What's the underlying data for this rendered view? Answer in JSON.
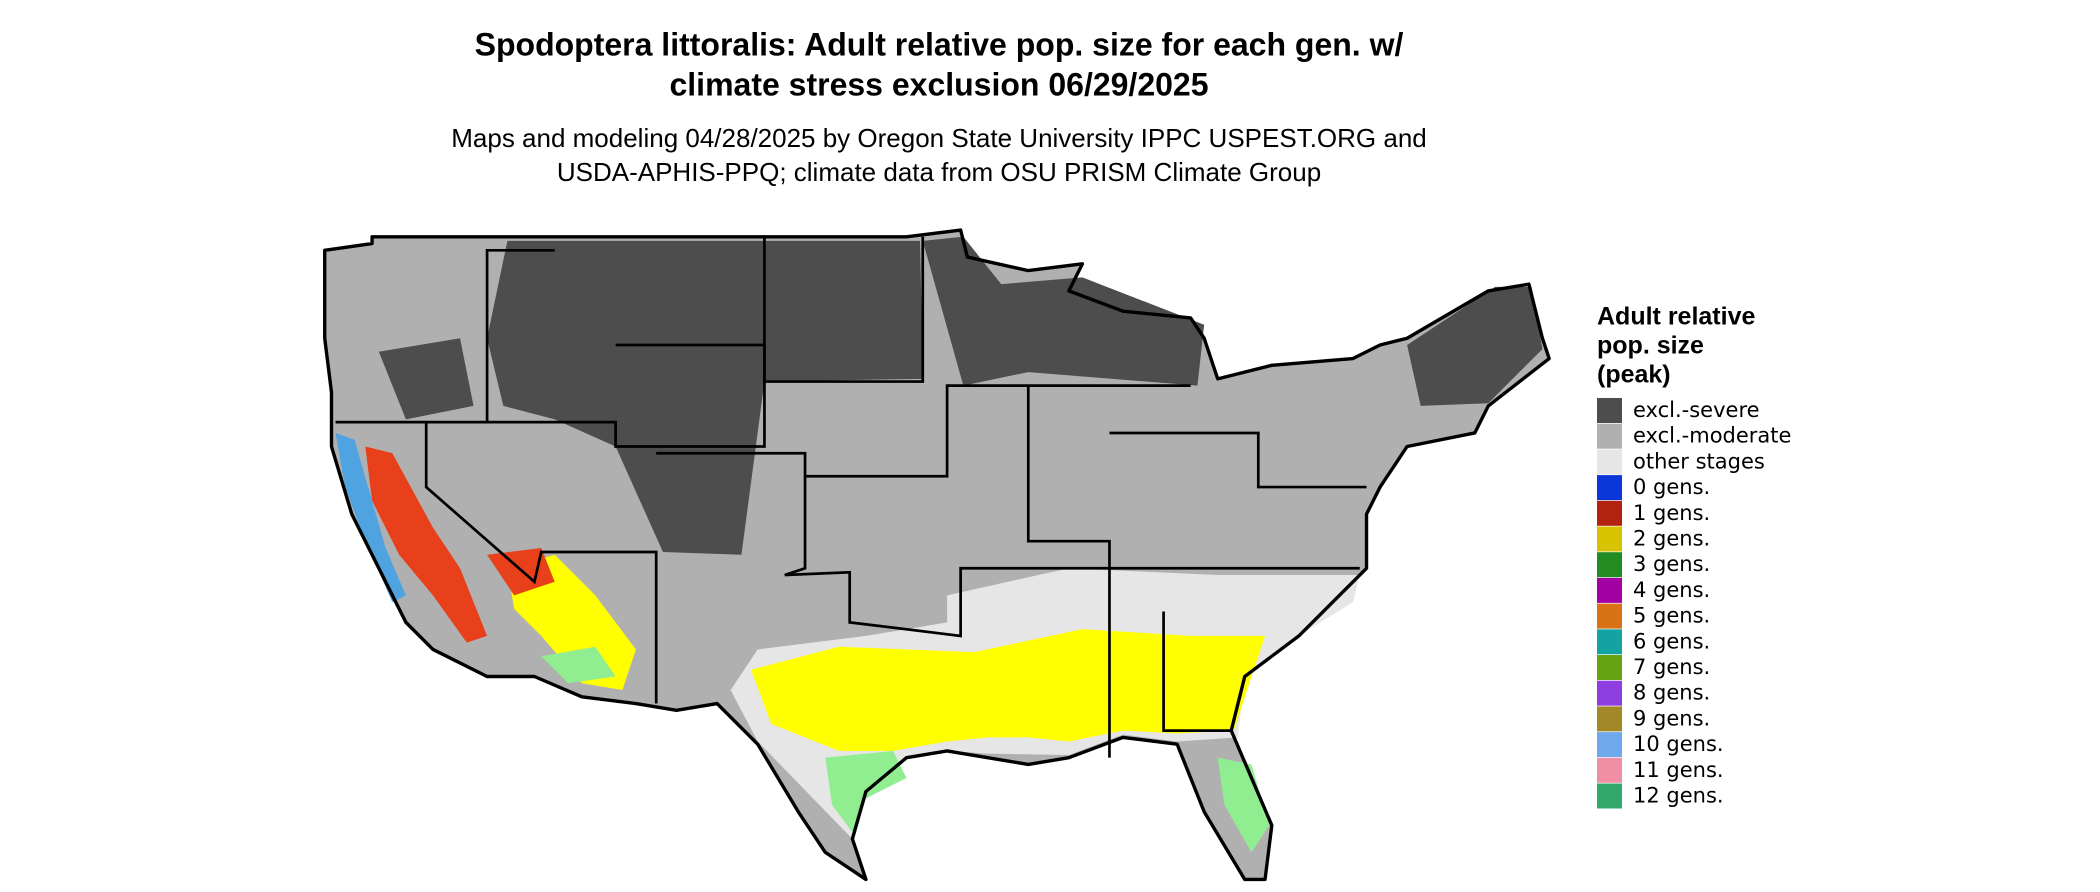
{
  "title": [
    "Spodoptera littoralis: Adult relative pop. size for each gen. w/",
    "climate stress exclusion 06/29/2025"
  ],
  "subtitle": [
    "Maps and modeling 04/28/2025 by Oregon State University IPPC USPEST.ORG and",
    "USDA-APHIS-PPQ; climate data from OSU PRISM Climate Group"
  ],
  "legend": {
    "title": [
      "Adult relative",
      "pop. size",
      "(peak)"
    ],
    "items": [
      {
        "label": "excl.-severe",
        "color": "#4d4d4d"
      },
      {
        "label": "excl.-moderate",
        "color": "#b0b0b0"
      },
      {
        "label": "other stages",
        "color": "#e6e6e6"
      },
      {
        "label": "0 gens.",
        "color": "#0a36d9"
      },
      {
        "label": "1 gens.",
        "color": "#b22211"
      },
      {
        "label": "2 gens.",
        "color": "#d9c300"
      },
      {
        "label": "3 gens.",
        "color": "#228b22"
      },
      {
        "label": "4 gens.",
        "color": "#a300a3"
      },
      {
        "label": "5 gens.",
        "color": "#d97214"
      },
      {
        "label": "6 gens.",
        "color": "#14a3a3"
      },
      {
        "label": "7 gens.",
        "color": "#66a314"
      },
      {
        "label": "8 gens.",
        "color": "#8f3fe0"
      },
      {
        "label": "9 gens.",
        "color": "#a38828"
      },
      {
        "label": "10 gens.",
        "color": "#6fa8eb"
      },
      {
        "label": "11 gens.",
        "color": "#f08fa3"
      },
      {
        "label": "12 gens.",
        "color": "#32a86b"
      }
    ]
  }
}
